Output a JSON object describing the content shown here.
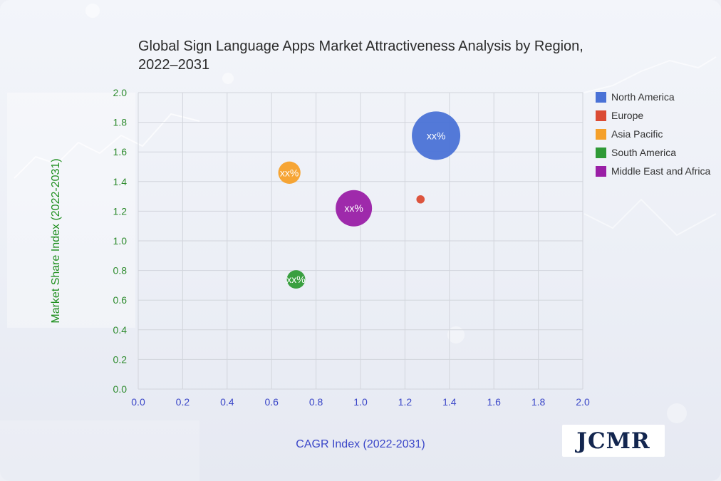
{
  "chart_data": {
    "type": "bubble",
    "title": "Global Sign Language Apps Market Attractiveness Analysis by Region, 2022–2031",
    "xlabel": "CAGR Index (2022-2031)",
    "ylabel": "Market Share Index (2022-2031)",
    "xlim": [
      0,
      2.0
    ],
    "ylim": [
      0,
      2.0
    ],
    "x_ticks": [
      "0.0",
      "0.2",
      "0.4",
      "0.6",
      "0.8",
      "1.0",
      "1.2",
      "1.4",
      "1.6",
      "1.8",
      "2.0"
    ],
    "y_ticks": [
      "0.0",
      "0.2",
      "0.4",
      "0.6",
      "0.8",
      "1.0",
      "1.2",
      "1.4",
      "1.6",
      "1.8",
      "2.0"
    ],
    "grid": true,
    "legend_position": "right",
    "series": [
      {
        "name": "North America",
        "x": 1.34,
        "y": 1.71,
        "size": 1.0,
        "label": "xx%",
        "color": "#4a72d6"
      },
      {
        "name": "Europe",
        "x": 1.27,
        "y": 1.28,
        "size": 0.17,
        "label": "",
        "color": "#db4b34"
      },
      {
        "name": "Asia Pacific",
        "x": 0.68,
        "y": 1.46,
        "size": 0.46,
        "label": "xx%",
        "color": "#f5a02a"
      },
      {
        "name": "South America",
        "x": 0.71,
        "y": 0.74,
        "size": 0.38,
        "label": "xx%",
        "color": "#2f9a36"
      },
      {
        "name": "Middle East and Africa",
        "x": 0.97,
        "y": 1.22,
        "size": 0.75,
        "label": "xx%",
        "color": "#9a1fa6"
      }
    ]
  },
  "logo": {
    "text": "JCMR"
  },
  "colors": {
    "title": "#2b2b2b",
    "x_axis": "#3a46c8",
    "y_tick": "#2e8b2e",
    "y_label": "#1f8f1f",
    "grid": "#d2d5dc"
  }
}
